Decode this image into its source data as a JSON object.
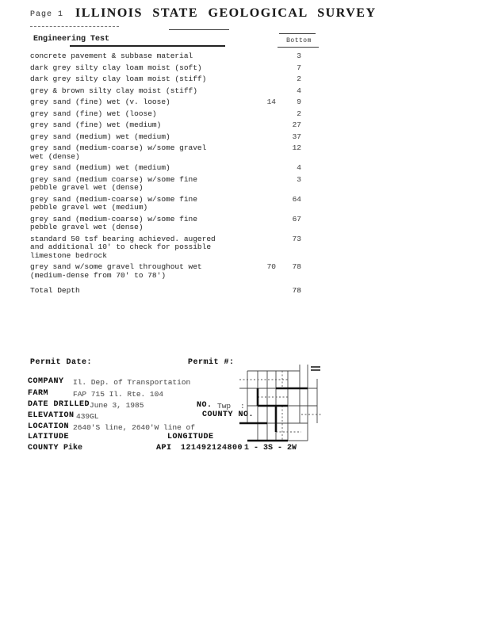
{
  "page": {
    "page_label": "Page 1",
    "title": "ILLINOIS STATE GEOLOGICAL SURVEY"
  },
  "table": {
    "section_title": "Engineering Test",
    "column_header": "Bottom",
    "rows": [
      {
        "lines": [
          "concrete pavement & subbase material"
        ],
        "mid": "",
        "value": "3"
      },
      {
        "lines": [
          "dark grey silty clay loam moist (soft)"
        ],
        "mid": "",
        "value": "7"
      },
      {
        "lines": [
          "dark grey silty clay loam moist (stiff)"
        ],
        "mid": "",
        "value": "2"
      },
      {
        "lines": [
          "grey & brown silty clay moist (stiff)"
        ],
        "mid": "",
        "value": "4"
      },
      {
        "lines": [
          "grey sand (fine) wet (v. loose)"
        ],
        "mid": "14",
        "value": "9"
      },
      {
        "lines": [
          "grey sand (fine) wet (loose)"
        ],
        "mid": "",
        "value": "2"
      },
      {
        "lines": [
          "grey sand (fine) wet (medium)"
        ],
        "mid": "",
        "value": "27"
      },
      {
        "lines": [
          "grey sand (medium) wet (medium)"
        ],
        "mid": "",
        "value": "37"
      },
      {
        "lines": [
          "grey sand (medium-coarse) w/some gravel",
          "wet (dense)"
        ],
        "mid": "",
        "value": "12"
      },
      {
        "lines": [
          "grey sand (medium) wet (medium)"
        ],
        "mid": "",
        "value": "4"
      },
      {
        "lines": [
          "grey sand (medium coarse) w/some fine",
          "pebble gravel wet (dense)"
        ],
        "mid": "",
        "value": "3"
      },
      {
        "lines": [
          "grey sand (medium-coarse) w/some fine",
          "pebble gravel wet (medium)"
        ],
        "mid": "",
        "value": "64"
      },
      {
        "lines": [
          "grey sand (medium-coarse) w/some fine",
          "pebble gravel wet (dense)"
        ],
        "mid": "",
        "value": "67"
      },
      {
        "lines": [
          "standard 50 tsf bearing achieved. augered",
          "and additional 10' to check for possible",
          "limestone bedrock"
        ],
        "mid": "",
        "value": "73"
      },
      {
        "lines": [
          "grey sand w/some gravel throughout wet",
          "(medium-dense from 70' to 78')"
        ],
        "mid": "70",
        "value": "78"
      }
    ],
    "total": {
      "label": "Total Depth",
      "value": "78"
    }
  },
  "form": {
    "permit_date_label": "Permit Date:",
    "permit_no_label": "Permit #:",
    "company_label": "COMPANY",
    "company_value": "Il. Dep. of Transportation",
    "farm_label": "FARM",
    "farm_value": "FAP 715 Il. Rte. 104",
    "date_drilled_label": "DATE DRILLED",
    "date_drilled_value": "June 3, 1985",
    "no_label": "NO.",
    "no_value": "Twp",
    "no_colon": ":",
    "elevation_label": "ELEVATION",
    "elevation_value": "439GL",
    "county_no_label": "COUNTY NO.",
    "location_label": "LOCATION",
    "location_value": "2640'S line, 2640'W line of",
    "latitude_label": "LATITUDE",
    "longitude_label": "LONGITUDE",
    "county_label": "COUNTY",
    "county_value": "Pike",
    "api_label": "API",
    "api_value": "121492124800",
    "trs_value": "1 - 3S - 2W"
  }
}
